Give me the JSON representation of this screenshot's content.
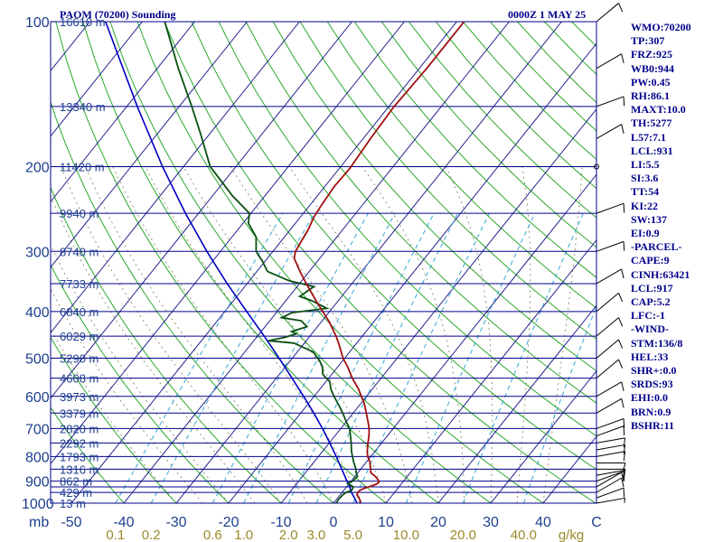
{
  "header": {
    "station": "PAOM (70200) Sounding",
    "datetime": "0000Z  1 MAY 25"
  },
  "panel": [
    "WMO:70200",
    "TP:307",
    "FRZ:925",
    "WB0:944",
    "PW:0.45",
    "RH:86.1",
    "MAXT:10.0",
    "TH:5277",
    "L57:7.1",
    "LCL:931",
    "LI:5.5",
    "SI:3.6",
    "TT:54",
    "KI:22",
    "SW:137",
    "EI:0.9",
    "-PARCEL-",
    "CAPE:9",
    "CINH:63421",
    "LCL:917",
    "CAP:5.2",
    "LFC:-1",
    "-WIND-",
    "STM:136/8",
    "HEL:33",
    "SHR+:0.0",
    "SRDS:93",
    "EHI:0.0",
    "BRN:0.9",
    "BSHR:11"
  ],
  "chart_data": {
    "type": "skew-t",
    "pressure_axis": {
      "unit_label": "mb",
      "ticks": [
        100,
        200,
        300,
        400,
        500,
        600,
        700,
        800,
        900,
        1000
      ],
      "tick_labels": [
        "100",
        "200",
        "300",
        "400",
        "500",
        "600",
        "700",
        "800",
        "900",
        "1000"
      ],
      "range": [
        1000,
        100
      ],
      "log_scale": true
    },
    "temperature_axis": {
      "ticks": [
        -50,
        -40,
        -30,
        -20,
        -10,
        0,
        10,
        20,
        30,
        40
      ],
      "tick_labels": [
        "-50",
        "-40",
        "-30",
        "-20",
        "-10",
        "0",
        "10",
        "20",
        "30",
        "40"
      ],
      "extra_label": "C"
    },
    "mixing_ratio_axis": {
      "values": [
        0.1,
        0.2,
        0.6,
        1.0,
        2.0,
        3.0,
        5.0,
        10.0,
        20.0,
        40.0
      ],
      "labels": [
        "0.1",
        "0.2",
        "0.6",
        "1.0",
        "2.0",
        "3.0",
        "5.0",
        "10.0",
        "20.0",
        "40.0"
      ],
      "unit_label": "g/kg"
    },
    "isobars": [
      100,
      150,
      200,
      250,
      300,
      350,
      400,
      450,
      500,
      550,
      600,
      650,
      700,
      750,
      800,
      850,
      900,
      925,
      950,
      1000
    ],
    "heights": [
      {
        "p": 100,
        "label": "16610 m"
      },
      {
        "p": 150,
        "label": "13340 m"
      },
      {
        "p": 200,
        "label": "11420 m"
      },
      {
        "p": 250,
        "label": "9940 m"
      },
      {
        "p": 300,
        "label": "8740 m"
      },
      {
        "p": 350,
        "label": "7733 m"
      },
      {
        "p": 400,
        "label": "6840 m"
      },
      {
        "p": 450,
        "label": "6029 m"
      },
      {
        "p": 500,
        "label": "5290 m"
      },
      {
        "p": 550,
        "label": "4608 m"
      },
      {
        "p": 600,
        "label": "3973 m"
      },
      {
        "p": 650,
        "label": "3379 m"
      },
      {
        "p": 700,
        "label": "2820 m"
      },
      {
        "p": 750,
        "label": "2292 m"
      },
      {
        "p": 800,
        "label": "1793 m"
      },
      {
        "p": 850,
        "label": "1316 m"
      },
      {
        "p": 900,
        "label": "862 m"
      },
      {
        "p": 950,
        "label": "429 m"
      },
      {
        "p": 1000,
        "label": "13 m"
      }
    ],
    "temperature_profile": [
      {
        "p": 1000,
        "t": 5.2
      },
      {
        "p": 990,
        "t": 4.8
      },
      {
        "p": 980,
        "t": 4.3
      },
      {
        "p": 970,
        "t": 3.8
      },
      {
        "p": 960,
        "t": 3.2
      },
      {
        "p": 950,
        "t": 3.0
      },
      {
        "p": 940,
        "t": 3.1
      },
      {
        "p": 932,
        "t": 3.6
      },
      {
        "p": 925,
        "t": 4.2
      },
      {
        "p": 915,
        "t": 5.2
      },
      {
        "p": 905,
        "t": 5.5
      },
      {
        "p": 895,
        "t": 5.0
      },
      {
        "p": 880,
        "t": 3.9
      },
      {
        "p": 865,
        "t": 2.5
      },
      {
        "p": 850,
        "t": 1.9
      },
      {
        "p": 820,
        "t": 0.6
      },
      {
        "p": 800,
        "t": -0.6
      },
      {
        "p": 780,
        "t": -1.5
      },
      {
        "p": 750,
        "t": -2.6
      },
      {
        "p": 720,
        "t": -3.7
      },
      {
        "p": 700,
        "t": -4.6
      },
      {
        "p": 680,
        "t": -5.7
      },
      {
        "p": 650,
        "t": -7.5
      },
      {
        "p": 620,
        "t": -9.4
      },
      {
        "p": 600,
        "t": -11.0
      },
      {
        "p": 580,
        "t": -12.6
      },
      {
        "p": 550,
        "t": -15.5
      },
      {
        "p": 520,
        "t": -18.2
      },
      {
        "p": 500,
        "t": -20.3
      },
      {
        "p": 470,
        "t": -23.0
      },
      {
        "p": 450,
        "t": -25.0
      },
      {
        "p": 420,
        "t": -28.5
      },
      {
        "p": 400,
        "t": -31.3
      },
      {
        "p": 380,
        "t": -34.2
      },
      {
        "p": 350,
        "t": -38.7
      },
      {
        "p": 330,
        "t": -41.8
      },
      {
        "p": 310,
        "t": -44.9
      },
      {
        "p": 300,
        "t": -45.7
      },
      {
        "p": 290,
        "t": -46.0
      },
      {
        "p": 270,
        "t": -46.6
      },
      {
        "p": 255,
        "t": -47.4
      },
      {
        "p": 240,
        "t": -47.8
      },
      {
        "p": 220,
        "t": -48.2
      },
      {
        "p": 202,
        "t": -48.0
      },
      {
        "p": 175,
        "t": -48.6
      },
      {
        "p": 150,
        "t": -49.0
      },
      {
        "p": 125,
        "t": -48.6
      },
      {
        "p": 100,
        "t": -48.6
      }
    ],
    "dewpoint_profile": [
      {
        "p": 1000,
        "td": 0.5
      },
      {
        "p": 980,
        "td": 0.4
      },
      {
        "p": 960,
        "td": 0.5
      },
      {
        "p": 950,
        "td": 0.8
      },
      {
        "p": 940,
        "td": 1.5
      },
      {
        "p": 925,
        "td": 1.3
      },
      {
        "p": 910,
        "td": -0.3
      },
      {
        "p": 900,
        "td": 0.3
      },
      {
        "p": 880,
        "td": 0.5
      },
      {
        "p": 865,
        "td": -0.3
      },
      {
        "p": 850,
        "td": -0.9
      },
      {
        "p": 820,
        "td": -2.5
      },
      {
        "p": 800,
        "td": -3.5
      },
      {
        "p": 780,
        "td": -4.5
      },
      {
        "p": 750,
        "td": -5.8
      },
      {
        "p": 700,
        "td": -8.3
      },
      {
        "p": 680,
        "td": -9.8
      },
      {
        "p": 650,
        "td": -12.0
      },
      {
        "p": 630,
        "td": -13.6
      },
      {
        "p": 600,
        "td": -16.2
      },
      {
        "p": 580,
        "td": -17.9
      },
      {
        "p": 560,
        "td": -19.2
      },
      {
        "p": 540,
        "td": -21.7
      },
      {
        "p": 520,
        "td": -23.0
      },
      {
        "p": 505,
        "td": -24.5
      },
      {
        "p": 485,
        "td": -27.0
      },
      {
        "p": 465,
        "td": -32.0
      },
      {
        "p": 460,
        "td": -37.2
      },
      {
        "p": 452,
        "td": -34.5
      },
      {
        "p": 445,
        "td": -33.0
      },
      {
        "p": 440,
        "td": -34.2
      },
      {
        "p": 430,
        "td": -32.0
      },
      {
        "p": 418,
        "td": -34.0
      },
      {
        "p": 412,
        "td": -38.2
      },
      {
        "p": 402,
        "td": -37.0
      },
      {
        "p": 394,
        "td": -31.0
      },
      {
        "p": 380,
        "td": -35.0
      },
      {
        "p": 372,
        "td": -38.0
      },
      {
        "p": 355,
        "td": -36.8
      },
      {
        "p": 345,
        "td": -42.5
      },
      {
        "p": 330,
        "td": -48.0
      },
      {
        "p": 315,
        "td": -50.4
      },
      {
        "p": 300,
        "td": -53.2
      },
      {
        "p": 280,
        "td": -55.4
      },
      {
        "p": 262,
        "td": -59.0
      },
      {
        "p": 250,
        "td": -60.3
      },
      {
        "p": 230,
        "td": -66.2
      },
      {
        "p": 200,
        "td": -74.9
      },
      {
        "p": 170,
        "td": -82.0
      },
      {
        "p": 150,
        "td": -87.6
      },
      {
        "p": 125,
        "td": -96.0
      },
      {
        "p": 100,
        "td": -105.7
      }
    ],
    "parcel_path": [
      {
        "p": 1000,
        "t": 4.5
      },
      {
        "p": 970,
        "t": 2.9
      },
      {
        "p": 950,
        "t": 1.8
      },
      {
        "p": 917,
        "t": 0.2
      },
      {
        "p": 900,
        "t": -0.8
      },
      {
        "p": 850,
        "t": -3.6
      },
      {
        "p": 800,
        "t": -6.6
      },
      {
        "p": 750,
        "t": -9.9
      },
      {
        "p": 700,
        "t": -13.5
      },
      {
        "p": 650,
        "t": -17.5
      },
      {
        "p": 600,
        "t": -22.0
      },
      {
        "p": 550,
        "t": -27.0
      },
      {
        "p": 500,
        "t": -32.5
      },
      {
        "p": 450,
        "t": -38.7
      },
      {
        "p": 400,
        "t": -45.8
      },
      {
        "p": 350,
        "t": -53.8
      },
      {
        "p": 300,
        "t": -62.6
      },
      {
        "p": 250,
        "t": -72.5
      },
      {
        "p": 200,
        "t": -84.0
      },
      {
        "p": 150,
        "t": -98.0
      },
      {
        "p": 100,
        "t": -117.0
      }
    ],
    "wind_barbs": [
      {
        "p": 1000,
        "dir": 80,
        "spd": 5
      },
      {
        "p": 975,
        "dir": 70,
        "spd": 10
      },
      {
        "p": 950,
        "dir": 60,
        "spd": 10
      },
      {
        "p": 925,
        "dir": 60,
        "spd": 10
      },
      {
        "p": 900,
        "dir": 70,
        "spd": 10
      },
      {
        "p": 875,
        "dir": 80,
        "spd": 10
      },
      {
        "p": 850,
        "dir": 90,
        "spd": 10
      },
      {
        "p": 825,
        "dir": 90,
        "spd": 10
      },
      {
        "p": 800,
        "dir": 80,
        "spd": 10
      },
      {
        "p": 775,
        "dir": 80,
        "spd": 10
      },
      {
        "p": 750,
        "dir": 80,
        "spd": 10
      },
      {
        "p": 725,
        "dir": 70,
        "spd": 10
      },
      {
        "p": 700,
        "dir": 70,
        "spd": 10
      },
      {
        "p": 650,
        "dir": 60,
        "spd": 10
      },
      {
        "p": 600,
        "dir": 60,
        "spd": 10
      },
      {
        "p": 550,
        "dir": 50,
        "spd": 10
      },
      {
        "p": 500,
        "dir": 50,
        "spd": 10
      },
      {
        "p": 450,
        "dir": 50,
        "spd": 10
      },
      {
        "p": 400,
        "dir": 50,
        "spd": 10
      },
      {
        "p": 350,
        "dir": 60,
        "spd": 10
      },
      {
        "p": 300,
        "dir": 70,
        "spd": 10
      },
      {
        "p": 250,
        "dir": 70,
        "spd": 10
      },
      {
        "p": 200,
        "dir": 0,
        "spd": 0
      },
      {
        "p": 175,
        "dir": 60,
        "spd": 10
      },
      {
        "p": 150,
        "dir": 70,
        "spd": 10
      },
      {
        "p": 125,
        "dir": 60,
        "spd": 10
      },
      {
        "p": 100,
        "dir": 50,
        "spd": 10
      }
    ],
    "colors": {
      "isobar": "#00008b",
      "isotherm": "#1e1e8c",
      "dry_adiabat": "#2aa82a",
      "moist_adiabat": "#7a7a5a",
      "mixing_ratio": "#35a7d6",
      "temperature": "#a01010",
      "dewpoint": "#0a4f12",
      "parcel": "#0000c0",
      "barb": "#000000",
      "label": "#1d3f8f"
    }
  }
}
